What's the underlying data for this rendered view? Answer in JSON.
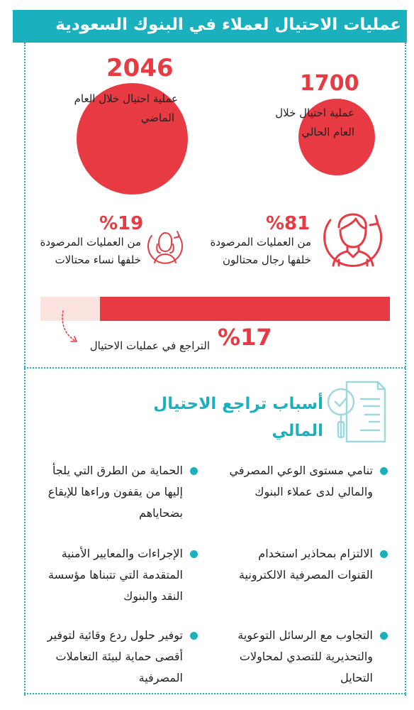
{
  "header": {
    "title": "عمليات الاحتيال لعملاء في البنوك السعودية"
  },
  "stats": {
    "last_year": {
      "value": "2046",
      "label_line1": "عملية احتيال خلال العام",
      "label_line2": "الماضي"
    },
    "this_year": {
      "value": "1700",
      "label_line1": "عملية احتيال خلال",
      "label_line2": "العام الحالي"
    }
  },
  "gender": {
    "men": {
      "percent": "%81",
      "line1": "من العمليات المرصودة",
      "line2": "خلفها رجال محتالون"
    },
    "women": {
      "percent": "%19",
      "line1": "من العمليات المرصودة",
      "line2": "خلفها نساء محتالات"
    }
  },
  "decline": {
    "percent": "%17",
    "label": "التراجع في عمليات الاحتيال",
    "fraction": 0.17
  },
  "reasons_title": {
    "line1": "أسباب تراجع الاحتيال",
    "line2": "المالي"
  },
  "reasons": [
    {
      "lines": [
        "تنامي مستوى الوعي المصرفي",
        "والمالي لدى عملاء البنوك"
      ]
    },
    {
      "lines": [
        "الحماية من الطرق التي يلجأ",
        "إليها من يقفون وراءها للإيقاع",
        "بضحاياهم"
      ]
    },
    {
      "lines": [
        "الالتزام بمحاذير استخدام",
        "القنوات المصرفية الالكترونية"
      ]
    },
    {
      "lines": [
        "الإجراءات والمعايير الأمنية",
        "المتقدمة التي تتبناها مؤسسة",
        "النقد والبنوك"
      ]
    },
    {
      "lines": [
        "التجاوب مع الرسائل التوعوية",
        "والتحذيرية للتصدي لمحاولات",
        "التحايل"
      ]
    },
    {
      "lines": [
        "توفير حلول ردع وقائية لتوفير",
        "أقصى حماية لبيئة التعاملات",
        "المصرفية"
      ]
    }
  ],
  "colors": {
    "accent": "#1bb0bd",
    "red": "#e83a42",
    "light_red": "#fbe4df"
  },
  "icons": [
    "man-icon",
    "woman-icon",
    "checklist-magnifier-icon",
    "dotted-arrow-icon"
  ]
}
